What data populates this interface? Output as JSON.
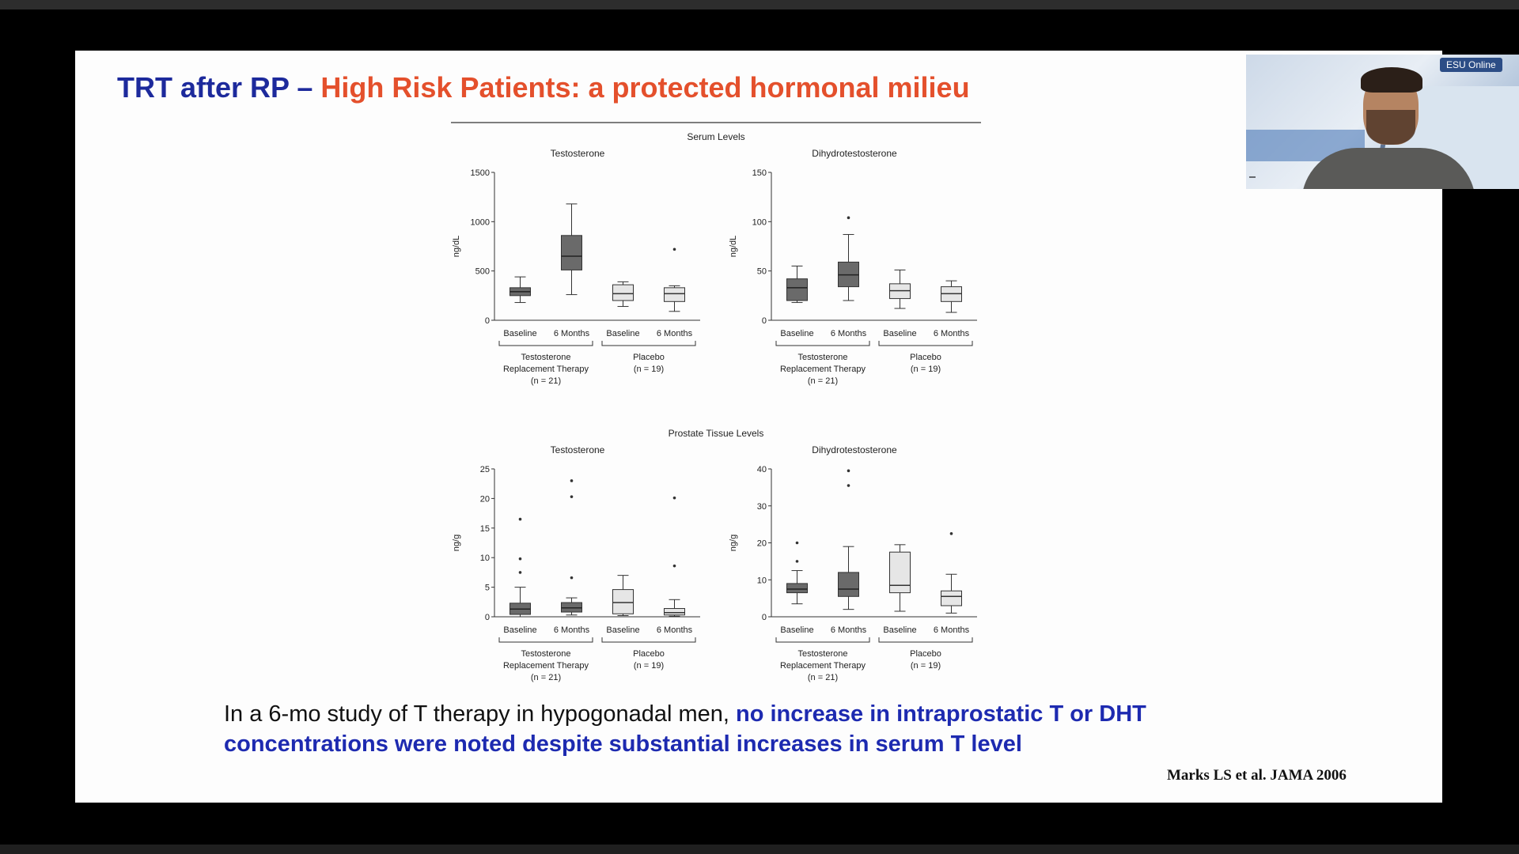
{
  "slide": {
    "title_part1": "TRT after RP –",
    "title_part2": "High Risk Patients: a protected hormonal milieu",
    "caption_normal": "In a 6-mo study of T therapy in hypogonadal men,",
    "caption_highlight": "no increase in intraprostatic T or DHT concentrations were noted despite substantial increases in serum T level",
    "reference": "Marks LS et al. JAMA 2006"
  },
  "webcam": {
    "badge": "ESU Online",
    "name_tag": ""
  },
  "colors": {
    "title_blue": "#1d2a9c",
    "title_red": "#e4502c",
    "caption_blue": "#1d2ab0",
    "box_dark": "#6a6a6a",
    "box_light": "#e6e6e6"
  },
  "chart_data": [
    {
      "type": "box",
      "section": "Serum Levels",
      "title": "Testosterone",
      "ylabel": "ng/dL",
      "ylim": [
        0,
        1500
      ],
      "yticks": [
        0,
        500,
        1000,
        1500
      ],
      "tick_labels": [
        "0",
        "500",
        "1000",
        "1500"
      ],
      "categories": [
        "Baseline",
        "6 Months",
        "Baseline",
        "6 Months"
      ],
      "groups": [
        {
          "label": "Testosterone Replacement Therapy",
          "n": "(n = 21)"
        },
        {
          "label": "Placebo",
          "n": "(n = 19)"
        }
      ],
      "boxes": [
        {
          "min": 180,
          "q1": 250,
          "median": 290,
          "q3": 330,
          "max": 440,
          "fill": "dark",
          "outliers": []
        },
        {
          "min": 260,
          "q1": 510,
          "median": 650,
          "q3": 860,
          "max": 1180,
          "fill": "dark",
          "outliers": []
        },
        {
          "min": 140,
          "q1": 200,
          "median": 270,
          "q3": 360,
          "max": 390,
          "fill": "light",
          "outliers": []
        },
        {
          "min": 90,
          "q1": 190,
          "median": 270,
          "q3": 330,
          "max": 350,
          "fill": "light",
          "outliers": [
            720
          ]
        }
      ]
    },
    {
      "type": "box",
      "section": "",
      "title": "Dihydrotestosterone",
      "ylabel": "ng/dL",
      "ylim": [
        0,
        150
      ],
      "yticks": [
        0,
        50,
        100,
        150
      ],
      "tick_labels": [
        "0",
        "50",
        "100",
        "150"
      ],
      "categories": [
        "Baseline",
        "6 Months",
        "Baseline",
        "6 Months"
      ],
      "groups": [
        {
          "label": "Testosterone Replacement Therapy",
          "n": "(n = 21)"
        },
        {
          "label": "Placebo",
          "n": "(n = 19)"
        }
      ],
      "boxes": [
        {
          "min": 18,
          "q1": 20,
          "median": 33,
          "q3": 42,
          "max": 55,
          "fill": "dark",
          "outliers": []
        },
        {
          "min": 20,
          "q1": 34,
          "median": 46,
          "q3": 59,
          "max": 87,
          "fill": "dark",
          "outliers": [
            104
          ]
        },
        {
          "min": 12,
          "q1": 22,
          "median": 30,
          "q3": 37,
          "max": 51,
          "fill": "light",
          "outliers": []
        },
        {
          "min": 8,
          "q1": 19,
          "median": 27,
          "q3": 34,
          "max": 40,
          "fill": "light",
          "outliers": []
        }
      ]
    },
    {
      "type": "box",
      "section": "Prostate Tissue Levels",
      "title": "Testosterone",
      "ylabel": "ng/g",
      "ylim": [
        0,
        25
      ],
      "yticks": [
        0,
        5,
        10,
        15,
        20,
        25
      ],
      "tick_labels": [
        "0",
        "5",
        "10",
        "15",
        "20",
        "25"
      ],
      "categories": [
        "Baseline",
        "6 Months",
        "Baseline",
        "6 Months"
      ],
      "groups": [
        {
          "label": "Testosterone Replacement Therapy",
          "n": "(n = 21)"
        },
        {
          "label": "Placebo",
          "n": "(n = 19)"
        }
      ],
      "boxes": [
        {
          "min": 0,
          "q1": 0.4,
          "median": 1.3,
          "q3": 2.3,
          "max": 5,
          "fill": "dark",
          "outliers": [
            7.5,
            9.8,
            16.5
          ]
        },
        {
          "min": 0.3,
          "q1": 0.8,
          "median": 1.5,
          "q3": 2.4,
          "max": 3.2,
          "fill": "dark",
          "outliers": [
            6.6,
            20.3,
            23
          ]
        },
        {
          "min": 0.2,
          "q1": 0.5,
          "median": 2.4,
          "q3": 4.6,
          "max": 7,
          "fill": "light",
          "outliers": []
        },
        {
          "min": 0.1,
          "q1": 0.3,
          "median": 0.7,
          "q3": 1.4,
          "max": 2.9,
          "fill": "light",
          "outliers": [
            8.6,
            20.1
          ]
        }
      ]
    },
    {
      "type": "box",
      "section": "",
      "title": "Dihydrotestosterone",
      "ylabel": "ng/g",
      "ylim": [
        0,
        40
      ],
      "yticks": [
        0,
        10,
        20,
        30,
        40
      ],
      "tick_labels": [
        "0",
        "10",
        "20",
        "30",
        "40"
      ],
      "categories": [
        "Baseline",
        "6 Months",
        "Baseline",
        "6 Months"
      ],
      "groups": [
        {
          "label": "Testosterone Replacement Therapy",
          "n": "(n = 21)"
        },
        {
          "label": "Placebo",
          "n": "(n = 19)"
        }
      ],
      "boxes": [
        {
          "min": 3.5,
          "q1": 6.5,
          "median": 7.5,
          "q3": 9,
          "max": 12.5,
          "fill": "dark",
          "outliers": [
            15,
            20
          ]
        },
        {
          "min": 2,
          "q1": 5.5,
          "median": 7.5,
          "q3": 12,
          "max": 19,
          "fill": "dark",
          "outliers": [
            35.5,
            39.5
          ]
        },
        {
          "min": 1.5,
          "q1": 6.5,
          "median": 8.5,
          "q3": 17.5,
          "max": 19.5,
          "fill": "light",
          "outliers": []
        },
        {
          "min": 1,
          "q1": 3,
          "median": 5.5,
          "q3": 7,
          "max": 11.5,
          "fill": "light",
          "outliers": [
            22.5
          ]
        }
      ]
    }
  ]
}
